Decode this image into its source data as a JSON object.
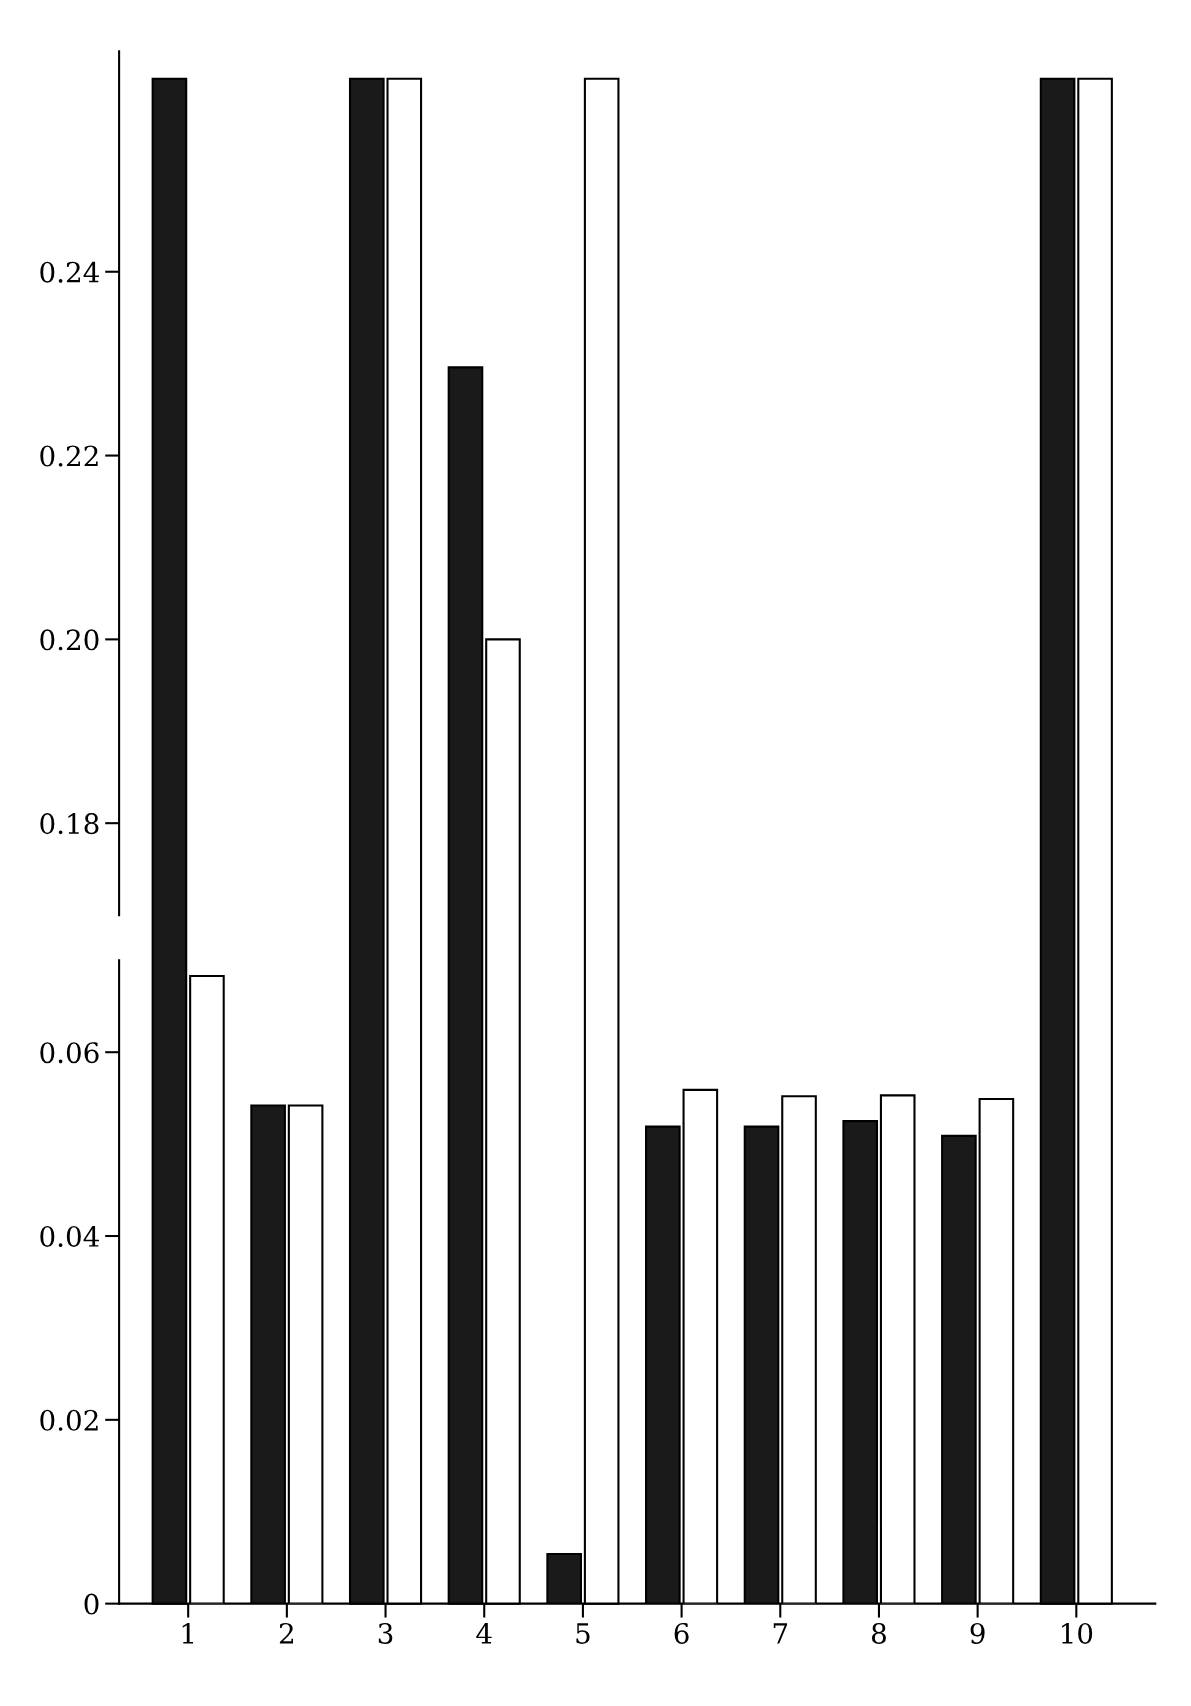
{
  "chart_data": [
    {
      "type": "bar",
      "categories": [
        "1",
        "2",
        "3",
        "4",
        "5",
        "6",
        "7",
        "8",
        "9",
        "10"
      ],
      "ylim": [
        0.17,
        0.264
      ],
      "yticks": [
        {
          "value": 0.18,
          "label": "0.18"
        },
        {
          "value": 0.2,
          "label": "0.20"
        },
        {
          "value": 0.22,
          "label": "0.22"
        },
        {
          "value": 0.24,
          "label": "0.24"
        }
      ],
      "tick_labels": "y",
      "grid": false,
      "series": [
        {
          "color": "#1a1a1a",
          "values": [
            0.261,
            null,
            0.261,
            0.2296,
            null,
            null,
            null,
            null,
            null,
            0.261
          ]
        },
        {
          "color": "#ffffff",
          "values": [
            null,
            null,
            0.261,
            0.2,
            0.261,
            null,
            null,
            null,
            null,
            0.261
          ]
        }
      ]
    },
    {
      "type": "bar",
      "categories": [
        "1",
        "2",
        "3",
        "4",
        "5",
        "6",
        "7",
        "8",
        "9",
        "10"
      ],
      "ylim": [
        0,
        0.07
      ],
      "yticks": [
        0,
        {
          "value": 0.02,
          "label": "0.02"
        },
        {
          "value": 0.04,
          "label": "0.04"
        },
        {
          "value": 0.06,
          "label": "0.06"
        }
      ],
      "grid": false,
      "series": [
        {
          "color": "#1a1a1a",
          "values": [
            null,
            0.0542,
            null,
            null,
            0.0054,
            0.0519,
            0.0519,
            0.0525,
            0.0509,
            null
          ]
        },
        {
          "color": "#ffffff",
          "values": [
            0.0683,
            0.0542,
            null,
            null,
            null,
            0.0559,
            0.0552,
            0.0553,
            0.0549,
            null
          ]
        }
      ]
    }
  ]
}
